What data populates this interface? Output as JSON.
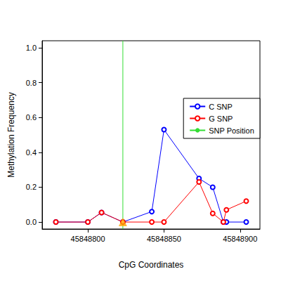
{
  "chart_data": {
    "type": "line",
    "x_label": "CpG Coordinates",
    "y_label": "Methylation Frequency",
    "x": [
      45848779,
      45848800,
      45848809,
      45848823,
      45848842,
      45848850,
      45848873,
      45848882,
      45848889,
      45848891,
      45848904
    ],
    "series": [
      {
        "name": "C SNP",
        "color": "#0000ff",
        "marker": "circle",
        "values": [
          0,
          0,
          0.055,
          0,
          0.06,
          0.53,
          0.25,
          0.2,
          0,
          0,
          0
        ]
      },
      {
        "name": "G SNP",
        "color": "#ff0000",
        "marker": "circle",
        "values": [
          0,
          0,
          0.055,
          0,
          0,
          0,
          0.23,
          0.05,
          0,
          0.07,
          0.12
        ]
      }
    ],
    "snp_position": {
      "name": "SNP Position",
      "x": 45848823,
      "y": 0,
      "color": "#33dd33",
      "marker": "triangle",
      "marker_color": "#ffa500"
    },
    "xlim": [
      45848770,
      45848913
    ],
    "xticks": [
      45848800,
      45848850,
      45848900
    ],
    "ylim": [
      -0.04,
      1.04
    ],
    "yticks": [
      {
        "value": 0,
        "label": "0.0"
      },
      0.2,
      0.4,
      0.6,
      0.8,
      {
        "value": 1,
        "label": "1.0"
      }
    ],
    "legend": "right",
    "grid": false
  }
}
